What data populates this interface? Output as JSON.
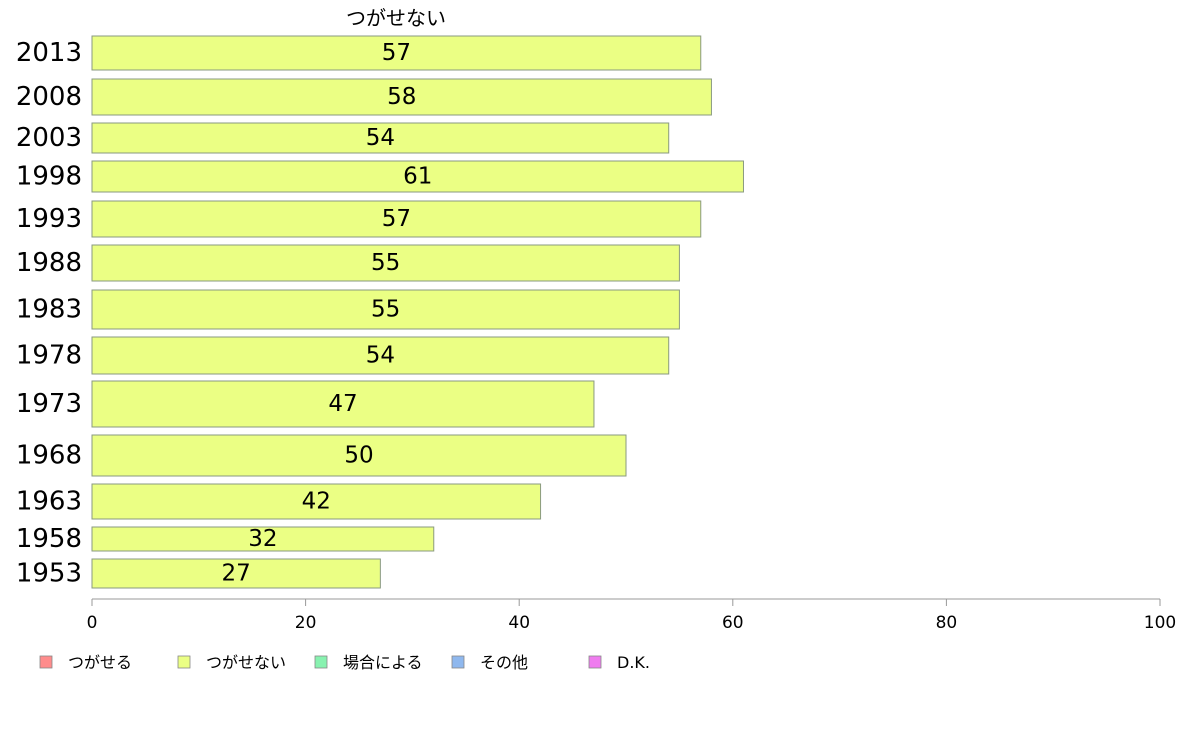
{
  "chart_data": {
    "type": "bar",
    "orientation": "horizontal",
    "title": "つがせない",
    "categories": [
      "2013",
      "2008",
      "2003",
      "1998",
      "1993",
      "1988",
      "1983",
      "1978",
      "1973",
      "1968",
      "1963",
      "1958",
      "1953"
    ],
    "series": [
      {
        "name": "つがせない",
        "values": [
          57,
          58,
          54,
          61,
          57,
          55,
          55,
          54,
          47,
          50,
          42,
          32,
          27
        ],
        "color": "#ebff84"
      }
    ],
    "xlim": [
      0,
      100
    ],
    "xticks": [
      0,
      20,
      40,
      60,
      80,
      100
    ],
    "grid": false,
    "legend": {
      "placement": "bottom",
      "items": [
        {
          "label": "つがせる",
          "color": "#ff8c8c"
        },
        {
          "label": "つがせない",
          "color": "#ebff84"
        },
        {
          "label": "場合による",
          "color": "#88f2b0"
        },
        {
          "label": "その他",
          "color": "#8fb8ee"
        },
        {
          "label": "D.K.",
          "color": "#ef7cef"
        }
      ]
    }
  }
}
